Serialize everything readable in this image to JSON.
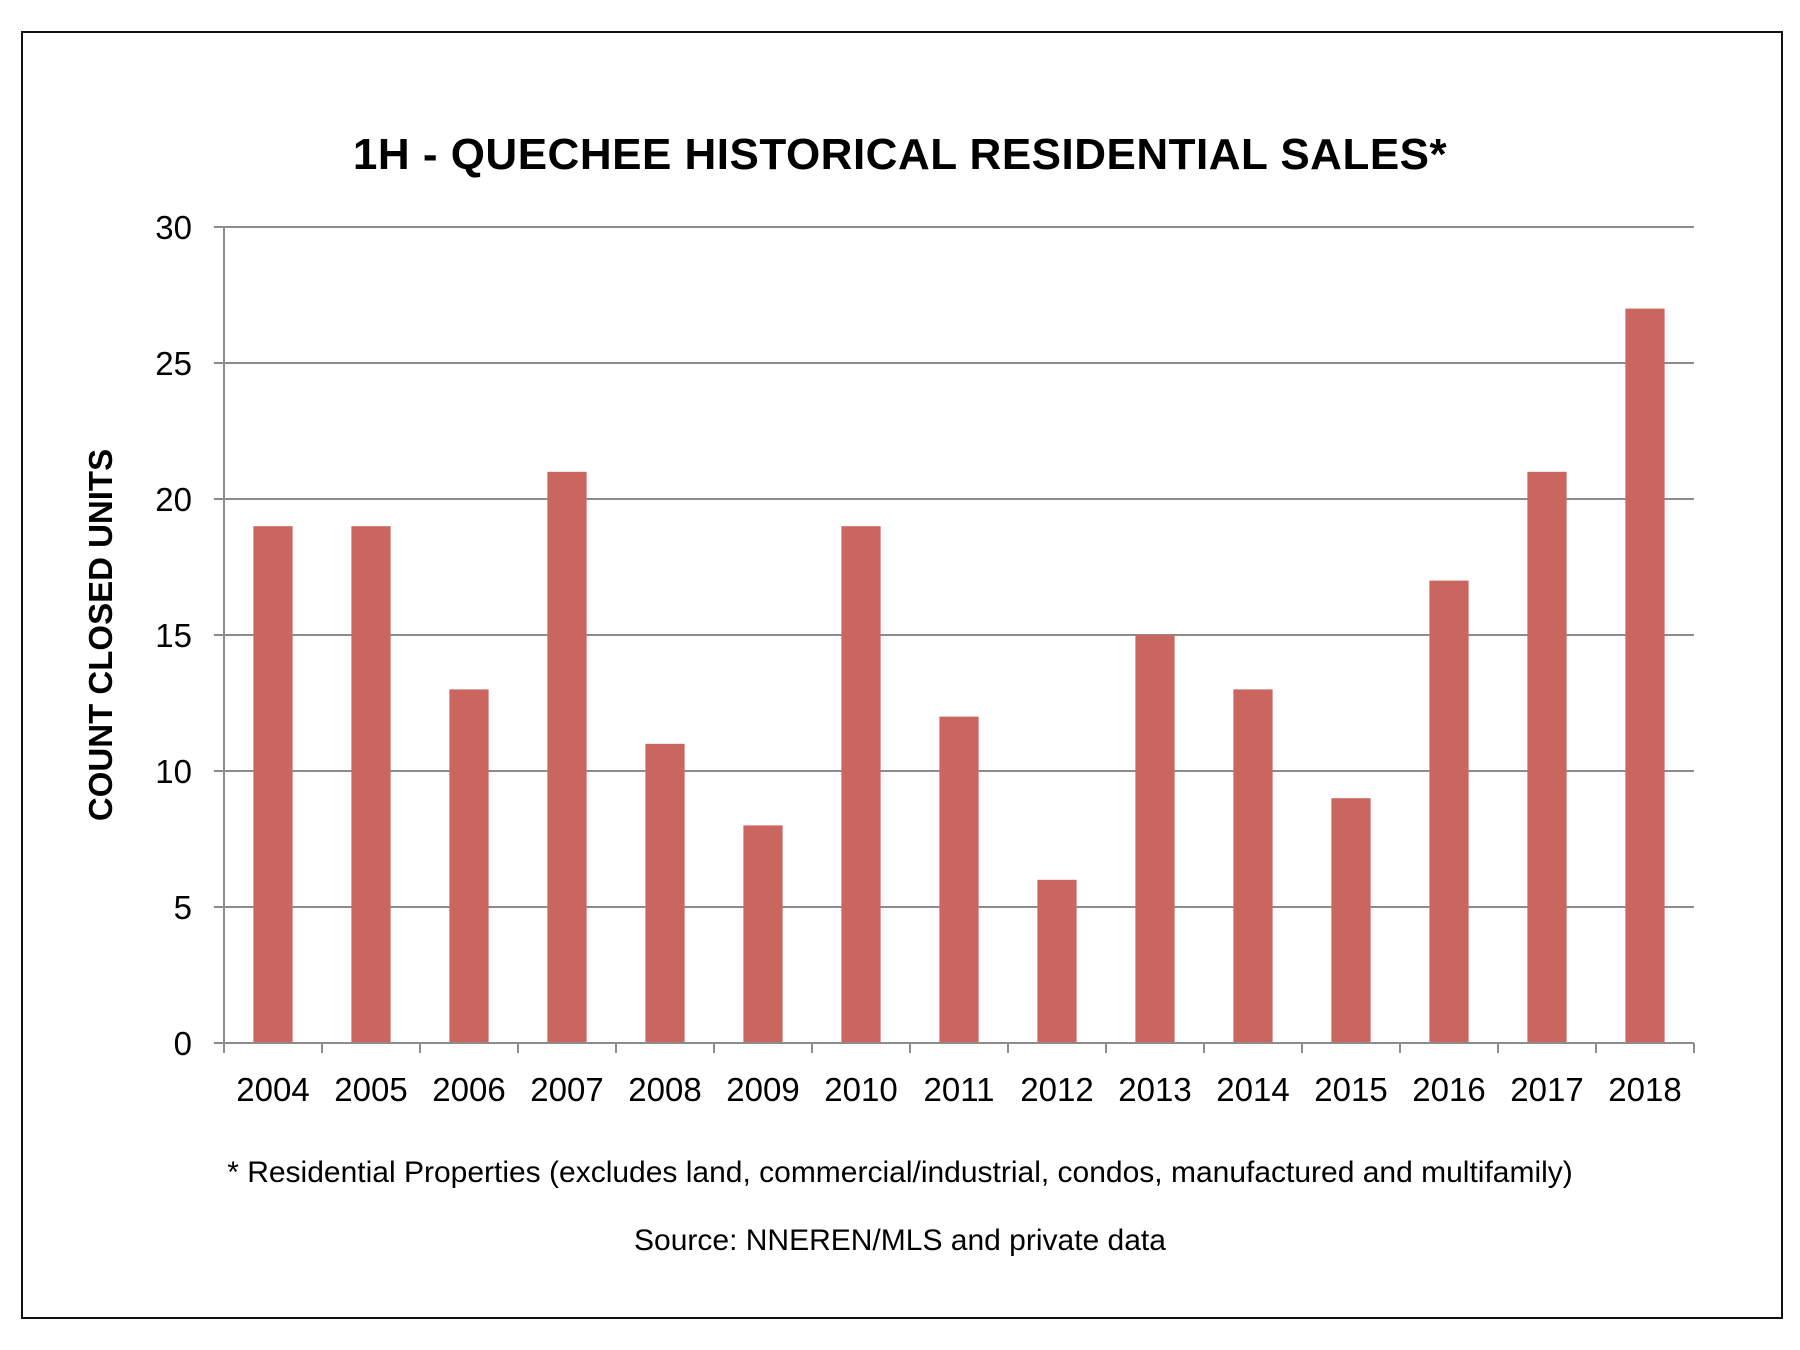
{
  "chart_data": {
    "type": "bar",
    "title": "1H - QUECHEE HISTORICAL RESIDENTIAL SALES*",
    "xlabel": "",
    "ylabel": "COUNT CLOSED UNITS",
    "categories": [
      "2004",
      "2005",
      "2006",
      "2007",
      "2008",
      "2009",
      "2010",
      "2011",
      "2012",
      "2013",
      "2014",
      "2015",
      "2016",
      "2017",
      "2018"
    ],
    "values": [
      19,
      19,
      13,
      21,
      11,
      8,
      19,
      12,
      6,
      15,
      13,
      9,
      17,
      21,
      27
    ],
    "ylim": [
      0,
      30
    ],
    "yticks": [
      0,
      5,
      10,
      15,
      20,
      25,
      30
    ],
    "grid": true,
    "legend": "none",
    "bar_color": "#cb6560",
    "grid_color": "#8c8c8c"
  },
  "footnote": "* Residential Properties (excludes land, commercial/industrial, condos, manufactured and multifamily)",
  "source": "Source: NNEREN/MLS and private data"
}
